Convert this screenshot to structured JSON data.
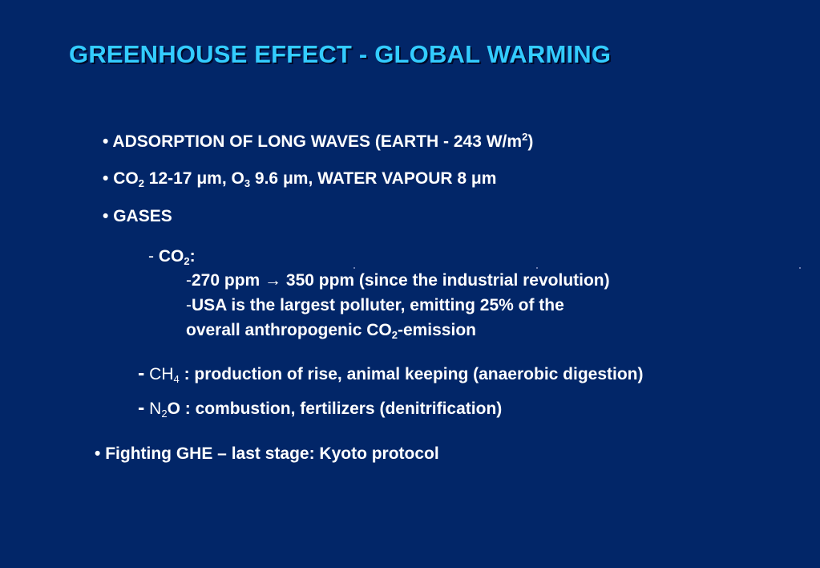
{
  "slide": {
    "title": "GREENHOUSE EFFECT - GLOBAL WARMING",
    "bullet_char": "•",
    "dash_char": "-",
    "item1": {
      "text": "ADSORPTION OF LONG WAVES (EARTH - 243 W/m",
      "sup": "2",
      "close": ")"
    },
    "item2": {
      "co": "CO",
      "co_sub": "2",
      "mid": " 12-17 μm, O",
      "o_sub": "3",
      "rest": " 9.6 μm, WATER VAPOUR 8 μm"
    },
    "item3": {
      "text": "GASES"
    },
    "co2_heading": {
      "label": "CO",
      "sub": "2",
      "colon": ":"
    },
    "co2_line1": {
      "text": "270 ppm",
      "arrow": "→",
      "rest": "350 ppm (since the industrial revolution)"
    },
    "co2_line2": {
      "text": "USA is the largest polluter, emitting 25% of the"
    },
    "co2_line3": {
      "text": "overall anthropogenic CO",
      "sub": "2",
      "rest": "-emission"
    },
    "ch4": {
      "label": "CH",
      "sub": "4",
      "rest": " : production of rise, animal keeping (anaerobic digestion)"
    },
    "n2o": {
      "label": "N",
      "sub": "2",
      "rest": "O : combustion, fertilizers (denitrification)"
    },
    "item_last": {
      "text": "Fighting GHE – last stage: Kyoto protocol"
    }
  },
  "colors": {
    "background": "#022668",
    "title": "#33ccff",
    "text": "#ffffff"
  }
}
